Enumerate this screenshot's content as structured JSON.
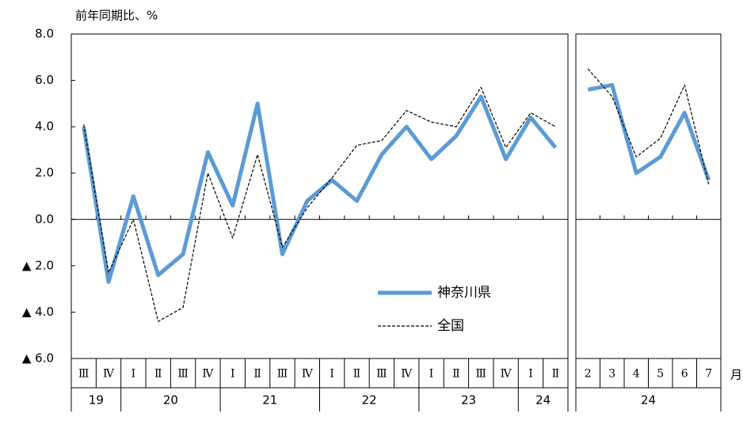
{
  "chart_data": [
    {
      "type": "line",
      "y_label": "前年同期比、%",
      "categories": [
        "Ⅲ",
        "Ⅳ",
        "Ⅰ",
        "Ⅱ",
        "Ⅲ",
        "Ⅳ",
        "Ⅰ",
        "Ⅱ",
        "Ⅲ",
        "Ⅳ",
        "Ⅰ",
        "Ⅱ",
        "Ⅲ",
        "Ⅳ",
        "Ⅰ",
        "Ⅱ",
        "Ⅲ",
        "Ⅳ",
        "Ⅰ",
        "Ⅱ"
      ],
      "x_groups": [
        "19",
        "19",
        "20",
        "20",
        "20",
        "20",
        "21",
        "21",
        "21",
        "21",
        "22",
        "22",
        "22",
        "22",
        "23",
        "23",
        "23",
        "23",
        "24",
        "24"
      ],
      "series": [
        {
          "name": "神奈川県",
          "color": "#5b9bd5",
          "style": "solid",
          "values": [
            4.0,
            -2.7,
            1.0,
            -2.4,
            -1.5,
            2.9,
            0.6,
            5.0,
            -1.5,
            0.8,
            1.7,
            0.8,
            2.8,
            4.0,
            2.6,
            3.6,
            5.3,
            2.6,
            4.4,
            3.1
          ]
        },
        {
          "name": "全国",
          "color": "#000000",
          "style": "dashed",
          "values": [
            4.1,
            -2.3,
            0.0,
            -4.4,
            -3.8,
            2.0,
            -0.8,
            2.8,
            -1.2,
            0.5,
            1.8,
            3.2,
            3.4,
            4.7,
            4.2,
            4.0,
            5.7,
            3.1,
            4.6,
            4.0
          ]
        }
      ],
      "ylim": [
        -6,
        8
      ],
      "yticks": [
        {
          "value": 8,
          "label": "8.0"
        },
        {
          "value": 6,
          "label": "6.0"
        },
        {
          "value": 4,
          "label": "4.0"
        },
        {
          "value": 2,
          "label": "2.0"
        },
        {
          "value": 0,
          "label": "0.0"
        },
        {
          "value": -2,
          "label": "▲ 2.0"
        },
        {
          "value": -4,
          "label": "▲ 4.0"
        },
        {
          "value": -6,
          "label": "▲ 6.0"
        }
      ]
    },
    {
      "type": "line",
      "x_label": "月",
      "categories": [
        "2",
        "3",
        "4",
        "5",
        "6",
        "7"
      ],
      "x_groups": [
        "24",
        "24",
        "24",
        "24",
        "24",
        "24"
      ],
      "series": [
        {
          "color": "#5b9bd5",
          "style": "solid",
          "values": [
            5.6,
            5.8,
            2.0,
            2.7,
            4.6,
            1.7
          ]
        },
        {
          "color": "#000000",
          "style": "dashed",
          "values": [
            6.5,
            5.3,
            2.7,
            3.5,
            5.8,
            1.5
          ]
        }
      ],
      "ylim": [
        -6,
        8
      ]
    }
  ]
}
